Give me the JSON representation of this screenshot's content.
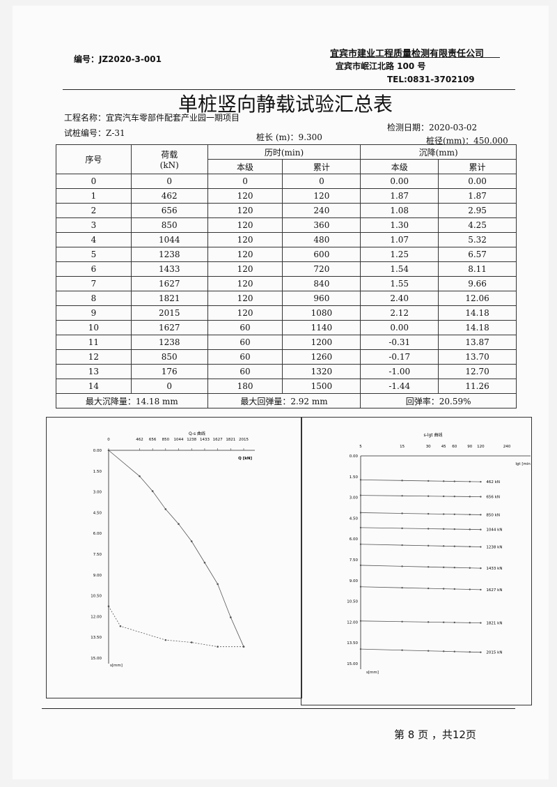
{
  "header": {
    "doc_no": "编号：JZ2020-3-001",
    "company": "宜宾市建业工程质量检测有限责任公司",
    "address": "宜宾市岷江北路 100 号",
    "tel": "TEL:0831-3702109"
  },
  "title": "单桩竖向静载试验汇总表",
  "info": {
    "project": "工程名称：宜宾汽车零部件配套产业园一期项目",
    "test_date": "检测日期：2020-03-02",
    "pile_no": "试桩编号：Z-31",
    "pile_length": "桩长 (m)：9.300",
    "pile_diameter": "桩径(mm)：450.000"
  },
  "table": {
    "h_index": "序号",
    "h_load": "荷载",
    "h_load_unit": "(kN)",
    "h_time": "历时(min)",
    "h_settle": "沉降(mm)",
    "h_stage": "本级",
    "h_cumul": "累计",
    "rows": [
      [
        "0",
        "0",
        "0",
        "0",
        "0.00",
        "0.00"
      ],
      [
        "1",
        "462",
        "120",
        "120",
        "1.87",
        "1.87"
      ],
      [
        "2",
        "656",
        "120",
        "240",
        "1.08",
        "2.95"
      ],
      [
        "3",
        "850",
        "120",
        "360",
        "1.30",
        "4.25"
      ],
      [
        "4",
        "1044",
        "120",
        "480",
        "1.07",
        "5.32"
      ],
      [
        "5",
        "1238",
        "120",
        "600",
        "1.25",
        "6.57"
      ],
      [
        "6",
        "1433",
        "120",
        "720",
        "1.54",
        "8.11"
      ],
      [
        "7",
        "1627",
        "120",
        "840",
        "1.55",
        "9.66"
      ],
      [
        "8",
        "1821",
        "120",
        "960",
        "2.40",
        "12.06"
      ],
      [
        "9",
        "2015",
        "120",
        "1080",
        "2.12",
        "14.18"
      ],
      [
        "10",
        "1627",
        "60",
        "1140",
        "0.00",
        "14.18"
      ],
      [
        "11",
        "1238",
        "60",
        "1200",
        "-0.31",
        "13.87"
      ],
      [
        "12",
        "850",
        "60",
        "1260",
        "-0.17",
        "13.70"
      ],
      [
        "13",
        "176",
        "60",
        "1320",
        "-1.00",
        "12.70"
      ],
      [
        "14",
        "0",
        "180",
        "1500",
        "-1.44",
        "11.26"
      ]
    ],
    "footer": {
      "max_settle": "最大沉降量：14.18 mm",
      "max_rebound": "最大回弹量：2.92 mm",
      "rebound_rate": "回弹率：20.59%"
    }
  },
  "chart_data": [
    {
      "type": "line",
      "title": "Q-s 曲线",
      "xlabel": "Q [kN]",
      "ylabel": "s[mm]",
      "x_ticks": [
        0,
        462,
        656,
        850,
        1044,
        1238,
        1433,
        1627,
        1821,
        2015
      ],
      "y_ticks": [
        "0.00",
        "1.50",
        "3.00",
        "4.50",
        "6.00",
        "7.50",
        "9.00",
        "10.50",
        "12.00",
        "13.50",
        "15.00"
      ],
      "xlim": [
        0,
        2015
      ],
      "ylim": [
        0,
        15
      ],
      "series": [
        {
          "style": "solid",
          "x": [
            0,
            462,
            656,
            850,
            1044,
            1238,
            1433,
            1627,
            1821,
            2015
          ],
          "y": [
            0,
            1.87,
            2.95,
            4.25,
            5.32,
            6.57,
            8.11,
            9.66,
            12.06,
            14.18
          ]
        },
        {
          "style": "dashed",
          "x": [
            2015,
            1627,
            1238,
            850,
            176,
            0
          ],
          "y": [
            14.18,
            14.18,
            13.87,
            13.7,
            12.7,
            11.26
          ]
        }
      ]
    },
    {
      "type": "line",
      "title": "s-lgt 曲线",
      "xlabel": "lgt [min]",
      "ylabel": "s[mm]",
      "x_ticks": [
        5,
        15,
        30,
        45,
        60,
        90,
        120,
        240
      ],
      "y_ticks": [
        "0.00",
        "1.50",
        "3.00",
        "4.50",
        "6.00",
        "7.50",
        "9.00",
        "10.50",
        "12.00",
        "13.50",
        "15.00"
      ],
      "ylim": [
        0,
        15
      ],
      "series": [
        {
          "name": "462 kN",
          "s_start": 1.73,
          "s_end": 1.87
        },
        {
          "name": "656 kN",
          "s_start": 2.85,
          "s_end": 2.95
        },
        {
          "name": "850 kN",
          "s_start": 4.1,
          "s_end": 4.25
        },
        {
          "name": "1044 kN",
          "s_start": 5.18,
          "s_end": 5.32
        },
        {
          "name": "1238 kN",
          "s_start": 6.38,
          "s_end": 6.57
        },
        {
          "name": "1433 kN",
          "s_start": 7.9,
          "s_end": 8.11
        },
        {
          "name": "1627 kN",
          "s_start": 9.45,
          "s_end": 9.66
        },
        {
          "name": "1821 kN",
          "s_start": 11.92,
          "s_end": 12.06
        },
        {
          "name": "2015 kN",
          "s_start": 13.95,
          "s_end": 14.18
        }
      ]
    }
  ],
  "page": "第 8 页 ，共12页"
}
